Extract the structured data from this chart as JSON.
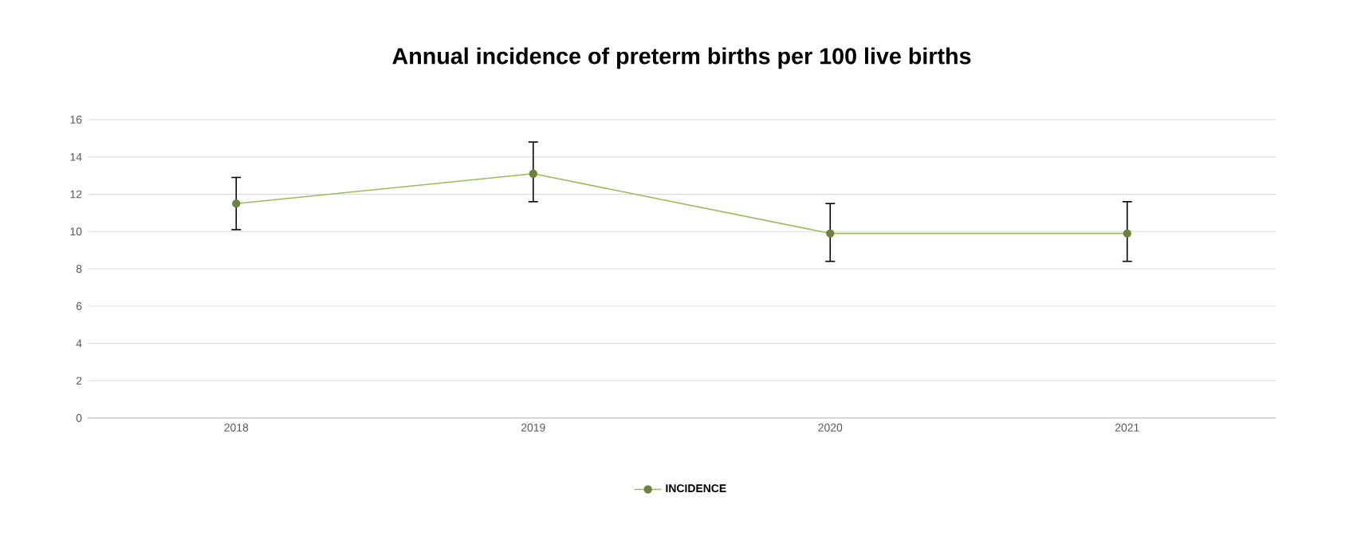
{
  "chart_data": {
    "type": "line",
    "title": "Annual incidence of preterm births per 100 live births",
    "categories": [
      "2018",
      "2019",
      "2020",
      "2021"
    ],
    "series": [
      {
        "name": "INCIDENCE",
        "color": "#9bbb59",
        "values": [
          11.5,
          13.1,
          9.9,
          9.9
        ],
        "errors": [
          [
            10.1,
            12.9
          ],
          [
            11.6,
            14.8
          ],
          [
            8.4,
            11.5
          ],
          [
            8.4,
            11.6
          ]
        ]
      }
    ],
    "ylim": [
      0,
      16
    ],
    "yticks": [
      0,
      2,
      4,
      6,
      8,
      10,
      12,
      14,
      16
    ],
    "grid": "y",
    "legend": "bottom",
    "marker": "circle",
    "line_style": "solid"
  }
}
